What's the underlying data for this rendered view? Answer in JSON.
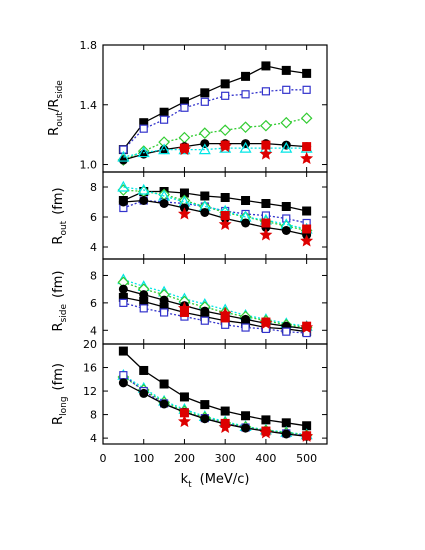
{
  "chart_data": [
    {
      "type": "line",
      "panel": "ratio",
      "ylabel_main": "R",
      "ylabel_sub1": "out",
      "ylabel_slash": "/R",
      "ylabel_sub2": "side",
      "ylim": [
        0.95,
        1.8
      ],
      "yticks": [
        1.0,
        1.4,
        1.8
      ],
      "ytick_labels": [
        "1.0",
        "1.4",
        "1.8"
      ],
      "x": [
        50,
        100,
        150,
        200,
        250,
        300,
        350,
        400,
        450,
        500
      ],
      "series": [
        {
          "marker": "square-filled",
          "line": "solid",
          "color": "#000000",
          "values": [
            1.1,
            1.28,
            1.35,
            1.42,
            1.48,
            1.54,
            1.59,
            1.66,
            1.63,
            1.61
          ]
        },
        {
          "marker": "square-open",
          "line": "dotted",
          "color": "#3333cc",
          "values": [
            1.1,
            1.24,
            1.3,
            1.38,
            1.42,
            1.46,
            1.47,
            1.49,
            1.5,
            1.5
          ]
        },
        {
          "marker": "diamond-open",
          "line": "dotted",
          "color": "#33cc33",
          "values": [
            1.03,
            1.09,
            1.15,
            1.18,
            1.21,
            1.23,
            1.25,
            1.26,
            1.28,
            1.31
          ]
        },
        {
          "marker": "circle-filled",
          "line": "solid",
          "color": "#000000",
          "values": [
            1.03,
            1.07,
            1.1,
            1.12,
            1.14,
            1.14,
            1.14,
            1.14,
            1.13,
            1.12
          ]
        },
        {
          "marker": "triangle-open",
          "line": "dotted",
          "color": "#00e5e5",
          "values": [
            1.05,
            1.08,
            1.1,
            1.1,
            1.1,
            1.11,
            1.11,
            1.11,
            1.11,
            1.11
          ]
        },
        {
          "marker": "square-filled",
          "line": "none",
          "color": "#dd0000",
          "values": [
            null,
            null,
            null,
            1.11,
            null,
            1.13,
            null,
            1.13,
            null,
            1.12
          ]
        },
        {
          "marker": "star",
          "line": "none",
          "color": "#dd0000",
          "values": [
            null,
            null,
            null,
            1.1,
            null,
            1.12,
            null,
            1.07,
            null,
            1.04
          ]
        }
      ]
    },
    {
      "type": "line",
      "panel": "rout",
      "ylabel_main": "R",
      "ylabel_sub1": "out",
      "ylabel_unit": "(fm)",
      "ylim": [
        3.2,
        9.0
      ],
      "yticks": [
        4,
        6,
        8
      ],
      "ytick_labels": [
        "4",
        "6",
        "8"
      ],
      "x": [
        50,
        100,
        150,
        200,
        250,
        300,
        350,
        400,
        450,
        500
      ],
      "series": [
        {
          "marker": "square-filled",
          "line": "solid",
          "color": "#000000",
          "values": [
            7.1,
            7.7,
            7.7,
            7.6,
            7.4,
            7.3,
            7.1,
            6.9,
            6.7,
            6.4
          ]
        },
        {
          "marker": "square-open",
          "line": "dotted",
          "color": "#3333cc",
          "values": [
            6.6,
            7.1,
            7.0,
            6.9,
            6.7,
            6.4,
            6.2,
            6.1,
            5.9,
            5.6
          ]
        },
        {
          "marker": "diamond-open",
          "line": "dotted",
          "color": "#33cc33",
          "values": [
            7.8,
            7.7,
            7.5,
            7.1,
            6.7,
            6.3,
            6.0,
            5.7,
            5.4,
            5.1
          ]
        },
        {
          "marker": "triangle-open",
          "line": "dotted",
          "color": "#00e5e5",
          "values": [
            8.0,
            7.8,
            7.4,
            7.0,
            6.7,
            6.4,
            6.0,
            5.8,
            5.5,
            5.2
          ]
        },
        {
          "marker": "circle-filled",
          "line": "solid",
          "color": "#000000",
          "values": [
            7.0,
            7.1,
            6.9,
            6.6,
            6.3,
            5.9,
            5.6,
            5.3,
            5.1,
            4.8
          ]
        },
        {
          "marker": "square-filled",
          "line": "none",
          "color": "#dd0000",
          "values": [
            null,
            null,
            null,
            null,
            null,
            6.1,
            null,
            5.6,
            null,
            5.2
          ]
        },
        {
          "marker": "star",
          "line": "none",
          "color": "#dd0000",
          "values": [
            null,
            null,
            null,
            6.2,
            null,
            5.5,
            null,
            4.8,
            null,
            4.4
          ]
        }
      ]
    },
    {
      "type": "line",
      "panel": "rside",
      "ylabel_main": "R",
      "ylabel_sub1": "side",
      "ylabel_unit": "(fm)",
      "ylim": [
        3.0,
        9.2
      ],
      "yticks": [
        4,
        6,
        8
      ],
      "ytick_labels": [
        "4",
        "6",
        "8"
      ],
      "x": [
        50,
        100,
        150,
        200,
        250,
        300,
        350,
        400,
        450,
        500
      ],
      "series": [
        {
          "marker": "triangle-open",
          "line": "dotted",
          "color": "#00e5e5",
          "values": [
            7.7,
            7.2,
            6.8,
            6.3,
            5.9,
            5.5,
            5.1,
            4.8,
            4.5,
            4.3
          ]
        },
        {
          "marker": "diamond-open",
          "line": "dotted",
          "color": "#33cc33",
          "values": [
            7.5,
            7.0,
            6.6,
            6.1,
            5.7,
            5.3,
            5.0,
            4.7,
            4.4,
            4.2
          ]
        },
        {
          "marker": "circle-filled",
          "line": "solid",
          "color": "#000000",
          "values": [
            7.0,
            6.6,
            6.2,
            5.8,
            5.4,
            5.1,
            4.8,
            4.5,
            4.3,
            4.1
          ]
        },
        {
          "marker": "square-filled",
          "line": "solid",
          "color": "#000000",
          "values": [
            6.4,
            6.1,
            5.7,
            5.3,
            5.0,
            4.7,
            4.5,
            4.2,
            4.1,
            3.9
          ]
        },
        {
          "marker": "square-open",
          "line": "dotted",
          "color": "#3333cc",
          "values": [
            6.0,
            5.6,
            5.3,
            5.0,
            4.7,
            4.4,
            4.2,
            4.1,
            3.9,
            3.8
          ]
        },
        {
          "marker": "square-filled",
          "line": "none",
          "color": "#dd0000",
          "values": [
            null,
            null,
            null,
            5.3,
            null,
            4.9,
            null,
            4.6,
            null,
            4.3
          ]
        },
        {
          "marker": "star",
          "line": "none",
          "color": "#dd0000",
          "values": [
            null,
            null,
            null,
            5.6,
            null,
            5.2,
            null,
            4.5,
            null,
            4.2
          ]
        }
      ]
    },
    {
      "type": "line",
      "panel": "rlong",
      "ylabel_main": "R",
      "ylabel_sub1": "long",
      "ylabel_unit": "(fm)",
      "ylim": [
        3.0,
        20.0
      ],
      "yticks": [
        4,
        8,
        12,
        16,
        20
      ],
      "ytick_labels": [
        "4",
        "8",
        "12",
        "16",
        "20"
      ],
      "xlim": [
        0,
        550
      ],
      "xticks": [
        0,
        100,
        200,
        300,
        400,
        500
      ],
      "xtick_labels": [
        "0",
        "100",
        "200",
        "300",
        "400",
        "500"
      ],
      "xlabel_main": "k",
      "xlabel_sub": "t",
      "xlabel_unit": "(MeV/c)",
      "x": [
        50,
        100,
        150,
        200,
        250,
        300,
        350,
        400,
        450,
        500
      ],
      "series": [
        {
          "marker": "square-filled",
          "line": "solid",
          "color": "#000000",
          "values": [
            18.8,
            15.5,
            13.2,
            11.0,
            9.7,
            8.6,
            7.8,
            7.1,
            6.6,
            6.1
          ]
        },
        {
          "marker": "triangle-open",
          "line": "dotted",
          "color": "#00e5e5",
          "values": [
            14.7,
            12.5,
            10.3,
            8.9,
            7.7,
            6.8,
            6.0,
            5.4,
            5.0,
            4.6
          ]
        },
        {
          "marker": "diamond-open",
          "line": "dotted",
          "color": "#33cc33",
          "values": [
            14.4,
            12.2,
            10.1,
            8.6,
            7.5,
            6.6,
            5.9,
            5.3,
            4.9,
            4.5
          ]
        },
        {
          "marker": "square-open",
          "line": "dotted",
          "color": "#3333cc",
          "values": [
            14.7,
            12.0,
            9.9,
            8.4,
            7.4,
            6.5,
            5.8,
            5.2,
            4.8,
            4.4
          ]
        },
        {
          "marker": "circle-filled",
          "line": "solid",
          "color": "#000000",
          "values": [
            13.4,
            11.6,
            9.8,
            8.4,
            7.3,
            6.4,
            5.7,
            5.2,
            4.7,
            4.3
          ]
        },
        {
          "marker": "square-filled",
          "line": "none",
          "color": "#dd0000",
          "values": [
            null,
            null,
            null,
            8.3,
            null,
            6.5,
            null,
            5.2,
            null,
            4.4
          ]
        },
        {
          "marker": "star",
          "line": "none",
          "color": "#dd0000",
          "values": [
            null,
            null,
            null,
            6.8,
            null,
            5.8,
            null,
            4.9,
            null,
            4.3
          ]
        }
      ]
    }
  ]
}
